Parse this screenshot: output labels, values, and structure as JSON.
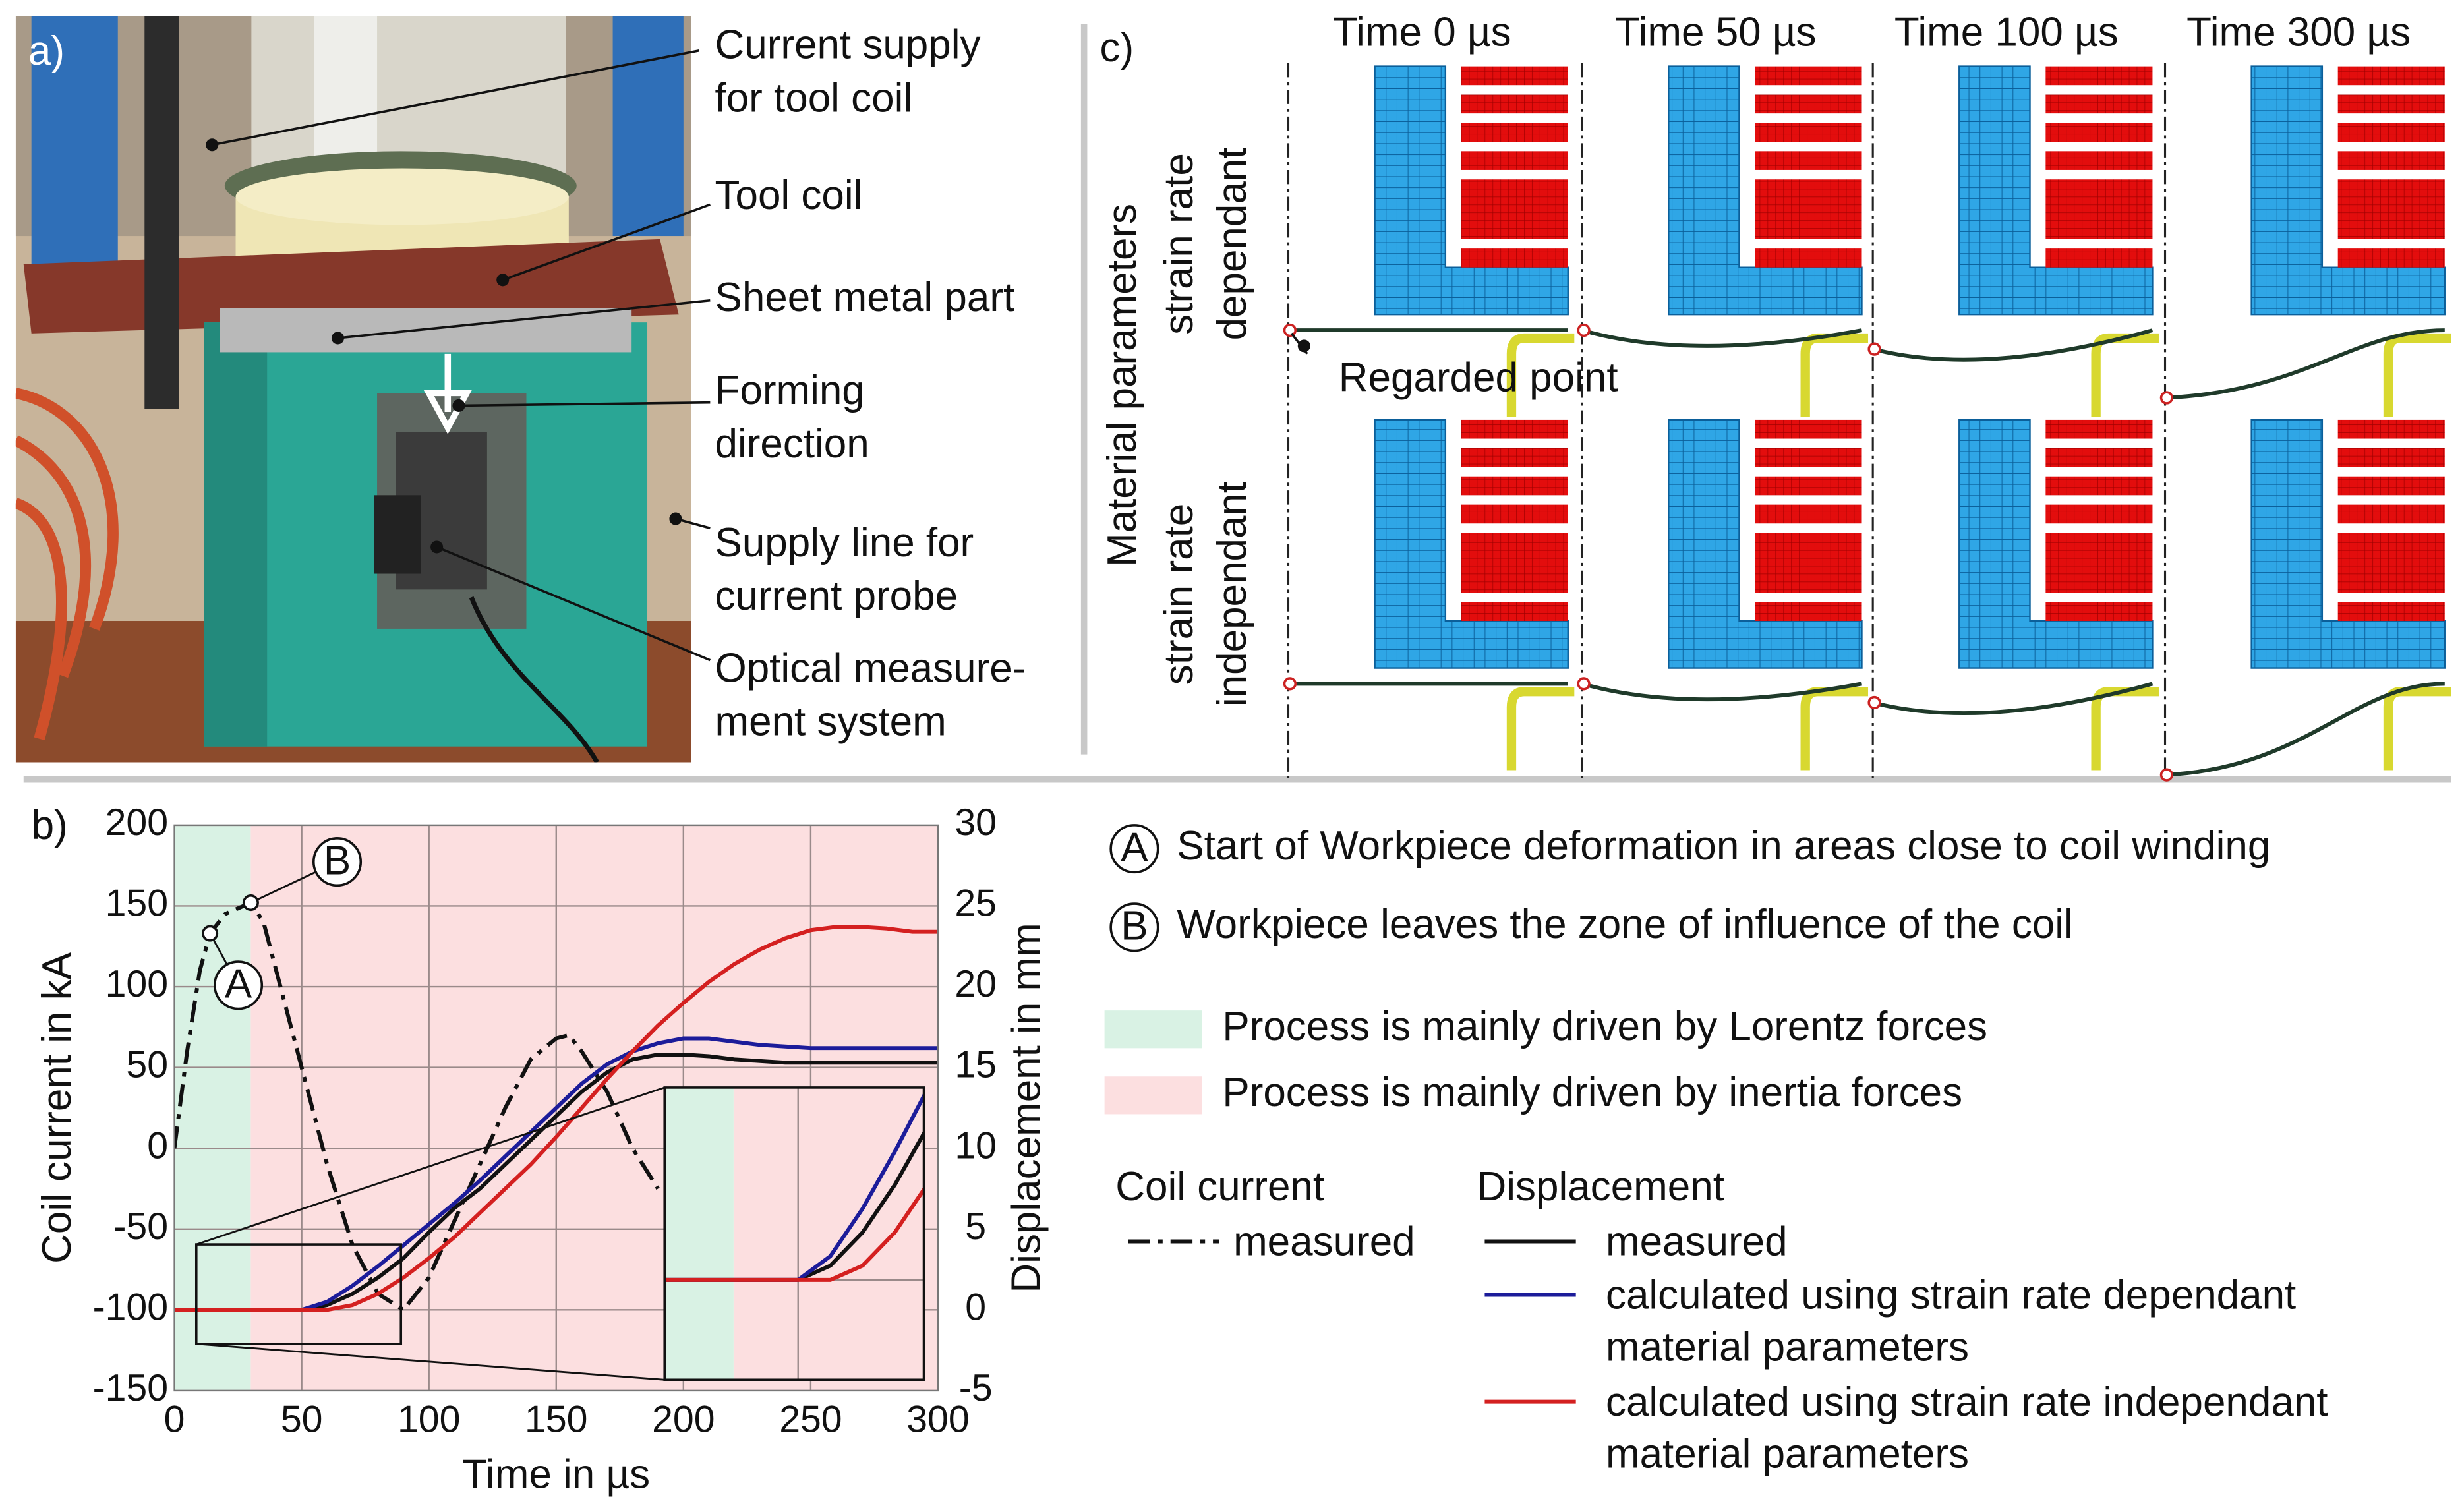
{
  "panel_a": {
    "label": "a)",
    "annotations": [
      [
        "Current supply",
        "for tool coil"
      ],
      [
        "Tool coil"
      ],
      [
        "Sheet metal part"
      ],
      [
        "Forming",
        "direction"
      ],
      [
        "Supply line for",
        "current probe"
      ],
      [
        "Optical measure-",
        "ment system"
      ]
    ]
  },
  "panel_c": {
    "label": "c)",
    "columns": [
      "Time 0 µs",
      "Time 50 µs",
      "Time 100 µs",
      "Time 300 µs"
    ],
    "row_title": "Material parameters",
    "rows": [
      [
        "strain rate",
        "dependant"
      ],
      [
        "strain rate",
        "independant"
      ]
    ],
    "annotation": "Regarded point"
  },
  "chart_data": {
    "type": "line",
    "label": "b)",
    "xlabel": "Time in µs",
    "ylabel": "Coil current in kA",
    "y2label": "Displacement in mm",
    "xlim": [
      0,
      300
    ],
    "xticks": [
      0,
      50,
      100,
      150,
      200,
      250,
      300
    ],
    "ylim": [
      -150,
      200
    ],
    "yticks": [
      -150,
      -100,
      -50,
      0,
      50,
      100,
      150,
      200
    ],
    "y2lim": [
      -5,
      30
    ],
    "y2ticks": [
      -5,
      0,
      5,
      10,
      15,
      20,
      25,
      30
    ],
    "grid": true,
    "regions": [
      {
        "xlim": [
          0,
          30
        ],
        "color": "#d9f2e4",
        "text": "Process is mainly driven by Lorentz forces"
      },
      {
        "xlim": [
          30,
          300
        ],
        "color": "#fcdfe0",
        "text": "Process is mainly driven by inertia forces"
      }
    ],
    "markers": [
      {
        "label": "A",
        "x": 14,
        "y": 133,
        "text": "Start of Workpiece deformation in areas close to coil winding"
      },
      {
        "label": "B",
        "x": 30,
        "y": 152,
        "text": "Workpiece leaves the zone of influence of the coil"
      }
    ],
    "y_legend_title": "Coil current",
    "y2_legend_title": "Displacement",
    "inset": {
      "xlim": [
        8.6,
        89
      ],
      "y2lim": [
        -2.1,
        4.05
      ]
    },
    "series": [
      {
        "name": [
          "measured"
        ],
        "axis": "y",
        "color": "#111111",
        "dashed": true,
        "x": [
          0,
          5,
          10,
          14,
          20,
          30,
          35,
          40,
          50,
          60,
          70,
          80,
          90,
          100,
          110,
          120,
          130,
          140,
          150,
          155,
          160,
          170,
          180,
          190
        ],
        "values": [
          0,
          60,
          110,
          133,
          145,
          152,
          140,
          110,
          50,
          -10,
          -60,
          -90,
          -100,
          -80,
          -45,
          -10,
          25,
          55,
          68,
          70,
          60,
          35,
          0,
          -25
        ]
      },
      {
        "name": [
          "measured"
        ],
        "axis": "y2",
        "color": "#111111",
        "dashed": false,
        "x": [
          0,
          10,
          20,
          30,
          40,
          50,
          60,
          70,
          80,
          90,
          100,
          110,
          120,
          130,
          140,
          150,
          160,
          170,
          180,
          190,
          200,
          210,
          220,
          230,
          240,
          250,
          260,
          270,
          280,
          290,
          300
        ],
        "values": [
          0,
          0,
          0,
          0,
          0,
          0,
          0.3,
          1,
          2,
          3.2,
          4.8,
          6.3,
          7.5,
          9,
          10.5,
          12,
          13.5,
          14.7,
          15.5,
          15.8,
          15.8,
          15.7,
          15.5,
          15.4,
          15.3,
          15.3,
          15.3,
          15.3,
          15.3,
          15.3,
          15.3
        ]
      },
      {
        "name": [
          "calculated using strain rate dependant",
          "material parameters"
        ],
        "axis": "y2",
        "color": "#1c1c9a",
        "dashed": false,
        "x": [
          0,
          10,
          20,
          30,
          40,
          50,
          60,
          70,
          80,
          90,
          100,
          110,
          120,
          130,
          140,
          150,
          160,
          170,
          180,
          190,
          200,
          210,
          220,
          230,
          240,
          250,
          260,
          270,
          280,
          290,
          300
        ],
        "values": [
          0,
          0,
          0,
          0,
          0,
          0,
          0.5,
          1.5,
          2.7,
          4,
          5.3,
          6.6,
          8,
          9.5,
          11,
          12.5,
          14,
          15.2,
          16,
          16.5,
          16.8,
          16.8,
          16.6,
          16.4,
          16.3,
          16.2,
          16.2,
          16.2,
          16.2,
          16.2,
          16.2
        ]
      },
      {
        "name": [
          "calculated using strain rate independant",
          "material parameters"
        ],
        "axis": "y2",
        "color": "#d42020",
        "dashed": false,
        "x": [
          0,
          10,
          20,
          30,
          40,
          50,
          60,
          70,
          80,
          90,
          100,
          110,
          120,
          130,
          140,
          150,
          160,
          170,
          180,
          190,
          200,
          210,
          220,
          230,
          240,
          250,
          260,
          270,
          280,
          290,
          300
        ],
        "values": [
          0,
          0,
          0,
          0,
          0,
          0,
          0,
          0.3,
          1,
          2,
          3.2,
          4.5,
          6,
          7.5,
          9,
          10.7,
          12.5,
          14.3,
          16,
          17.6,
          19,
          20.3,
          21.4,
          22.3,
          23,
          23.5,
          23.7,
          23.7,
          23.6,
          23.4,
          23.4
        ]
      }
    ]
  }
}
